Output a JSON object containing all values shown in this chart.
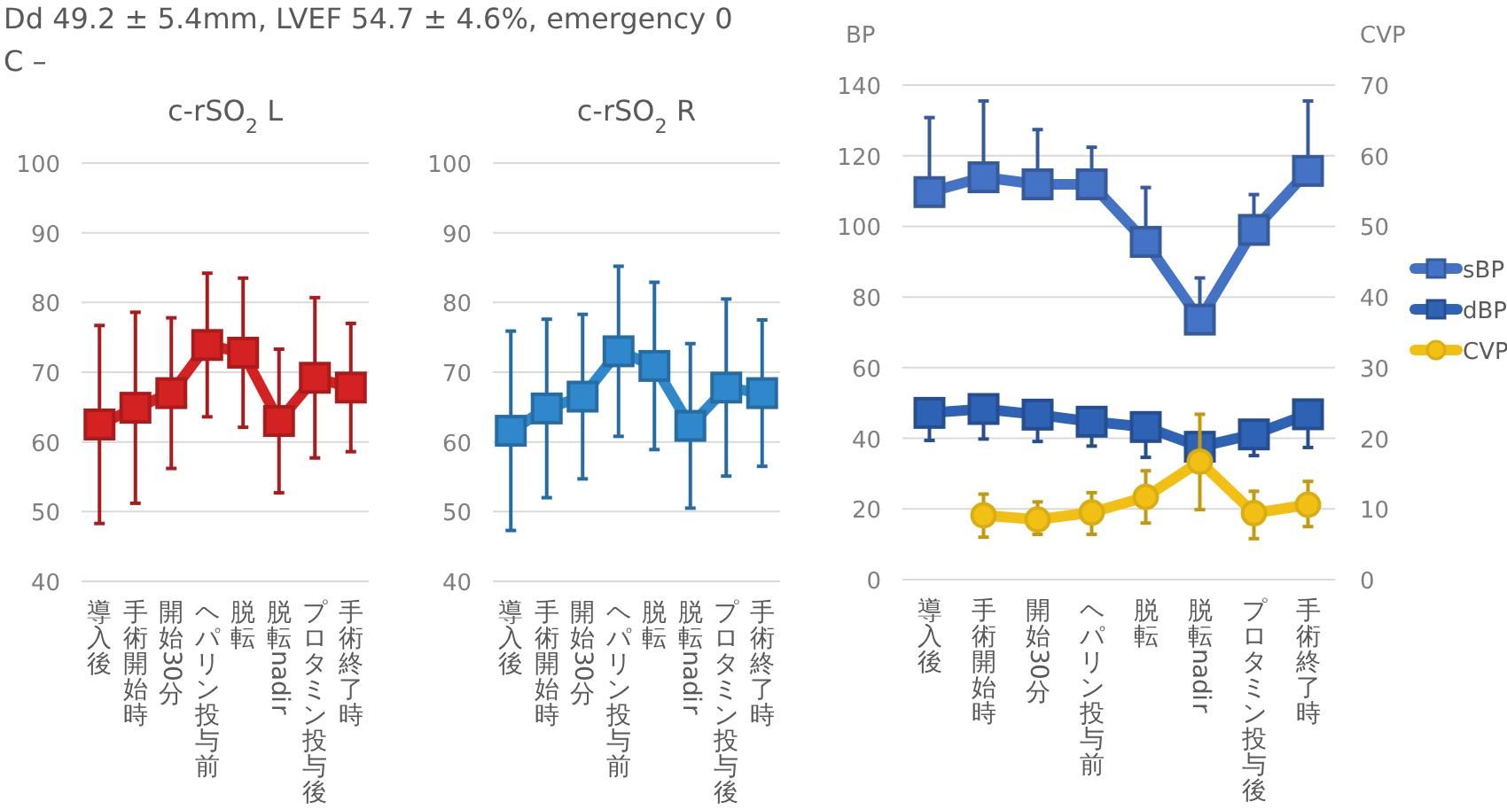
{
  "chart_data": [
    {
      "type": "line",
      "title": "c-rSO$_{2}$ L",
      "annotations": [
        "Dd 49.2 ± 5.4mm, LVEF 54.7 ± 4.6%, emergency 0",
        "C –"
      ],
      "categories": [
        "導入後",
        "手術開始時",
        "開始30分",
        "ヘパリン投与前",
        "脱転",
        "脱転nadir",
        "プロタミン投与後",
        "手術終了時"
      ],
      "series": [
        {
          "color": "#d42222",
          "marker": "square",
          "values": [
            62.5,
            64.9,
            67.0,
            73.9,
            72.8,
            63.0,
            69.2,
            67.8
          ],
          "errors": [
            14.2,
            13.7,
            10.8,
            10.3,
            10.7,
            10.3,
            11.5,
            9.2
          ]
        }
      ],
      "ylim": [
        40,
        100
      ],
      "yticks": [
        40,
        50,
        60,
        70,
        80,
        90,
        100
      ],
      "grid": "y"
    },
    {
      "type": "line",
      "title": "c-rSO$_{2}$ R",
      "categories": [
        "導入後",
        "手術開始時",
        "開始30分",
        "ヘパリン投与前",
        "脱転",
        "脱転nadir",
        "プロタミン投与後",
        "手術終了時"
      ],
      "series": [
        {
          "color": "#2f87cc",
          "marker": "square",
          "values": [
            61.6,
            64.8,
            66.5,
            73.0,
            70.9,
            62.3,
            67.8,
            67.0
          ],
          "errors": [
            14.3,
            12.8,
            11.8,
            12.2,
            12.0,
            11.8,
            12.7,
            10.5
          ]
        }
      ],
      "ylim": [
        40,
        100
      ],
      "yticks": [
        40,
        50,
        60,
        70,
        80,
        90,
        100
      ],
      "grid": "y"
    },
    {
      "type": "line",
      "ylabel": "BP",
      "y2label": "CVP",
      "categories": [
        "導入後",
        "手術開始時",
        "開始30分",
        "ヘパリン投与前",
        "脱転",
        "脱転nadir",
        "プロタミン投与後",
        "手術終了時"
      ],
      "series": [
        {
          "name": "sBP",
          "color": "#4472c4",
          "marker": "square",
          "values": [
            109.7,
            113.9,
            111.9,
            111.9,
            95.6,
            73.6,
            99.0,
            115.7
          ],
          "errors": [
            [
              109.7,
              130.8
            ],
            [
              113.9,
              135.5
            ],
            [
              111.9,
              127.4
            ],
            [
              111.9,
              122.4
            ],
            [
              95.6,
              111.0
            ],
            [
              73.6,
              85.4
            ],
            [
              99.0,
              109.0
            ],
            [
              115.7,
              135.5
            ]
          ]
        },
        {
          "name": "dBP",
          "color": "#2e62b5",
          "marker": "square",
          "values": [
            47.2,
            48.3,
            46.7,
            44.7,
            43.2,
            37.6,
            41.1,
            46.8
          ],
          "errors": [
            [
              39.4,
              47.2
            ],
            [
              39.8,
              48.3
            ],
            [
              39.1,
              46.7
            ],
            [
              37.8,
              44.7
            ],
            [
              34.6,
              43.2
            ],
            null,
            [
              35.1,
              41.1
            ],
            [
              37.4,
              46.8
            ]
          ]
        },
        {
          "name": "CVP",
          "color": "#f2c014",
          "marker": "circle",
          "axis": "y2",
          "values": [
            null,
            9.1,
            8.5,
            9.5,
            11.7,
            16.7,
            9.4,
            10.6
          ],
          "errors": [
            null,
            [
              6.0,
              12.1
            ],
            [
              6.4,
              11.0
            ],
            [
              6.4,
              12.3
            ],
            [
              8.0,
              15.4
            ],
            [
              9.9,
              23.4
            ],
            [
              5.8,
              12.5
            ],
            [
              7.5,
              13.9
            ]
          ]
        }
      ],
      "ylim": [
        0,
        140
      ],
      "yticks": [
        0,
        20,
        40,
        60,
        80,
        100,
        120,
        140
      ],
      "y2lim": [
        0,
        70
      ],
      "y2ticks": [
        0,
        10,
        20,
        30,
        40,
        50,
        60,
        70
      ],
      "grid": "y",
      "legend": "right"
    }
  ]
}
